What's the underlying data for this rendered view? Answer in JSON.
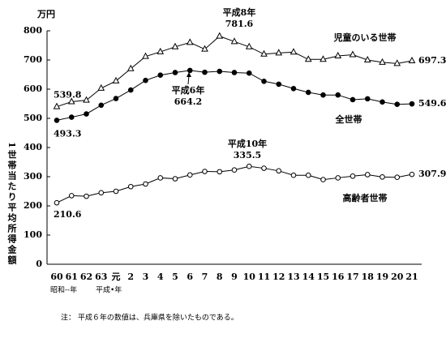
{
  "chart_data": {
    "type": "line",
    "unit": "万円",
    "y_label": "1世帯当たり平均所得金額",
    "x_sublabels": [
      "昭和--年",
      "平成•年"
    ],
    "note": "注： 平成６年の数値は、兵庫県を除いたものである。",
    "categories": [
      "60",
      "61",
      "62",
      "63",
      "元",
      "2",
      "3",
      "4",
      "5",
      "6",
      "7",
      "8",
      "9",
      "10",
      "11",
      "12",
      "13",
      "14",
      "15",
      "16",
      "17",
      "18",
      "19",
      "20",
      "21"
    ],
    "ylim": [
      0,
      800
    ],
    "yticks": [
      0,
      100,
      200,
      300,
      400,
      500,
      600,
      700,
      800
    ],
    "series": [
      {
        "name": "児童のいる世帯",
        "color": "#000000",
        "marker": "triangle",
        "values": [
          539.8,
          557,
          562,
          603,
          628,
          670,
          712,
          728,
          745,
          760,
          737,
          781.6,
          763,
          745,
          720,
          724,
          727,
          702,
          702,
          714,
          718,
          700,
          692,
          688,
          697.3
        ]
      },
      {
        "name": "全世帯",
        "color": "#000000",
        "marker": "filled-circle",
        "values": [
          493.3,
          504,
          515,
          545,
          568,
          597,
          630,
          648,
          657,
          664.2,
          658,
          661,
          657,
          655,
          627,
          617,
          602,
          589,
          580,
          580,
          564,
          567,
          556,
          548,
          549.6
        ]
      },
      {
        "name": "高齢者世帯",
        "color": "#000000",
        "marker": "open-circle",
        "values": [
          210.6,
          235,
          233,
          245,
          250,
          266,
          275,
          296,
          293,
          306,
          318,
          317,
          323,
          335.5,
          329,
          320,
          305,
          305,
          290,
          296,
          302,
          307,
          299,
          298,
          307.9
        ]
      }
    ],
    "annotations": [
      {
        "text": "平成8年",
        "value": 781.6
      },
      {
        "text": "平成6年",
        "value": 664.2
      },
      {
        "text": "平成10年",
        "value": 335.5
      }
    ]
  }
}
